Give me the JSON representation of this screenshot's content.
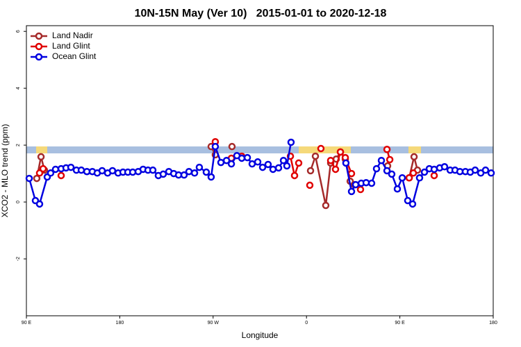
{
  "chart_data": {
    "type": "line",
    "title": "10N-15N May (Ver 10)   2015-01-01 to 2020-12-18",
    "x_label": "Longitude",
    "y_label": "XCO2 - MLO trend (ppm)",
    "xlim": [
      90,
      540
    ],
    "ylim": [
      -4,
      6.2
    ],
    "xticks": [
      {
        "value": 90,
        "label": "90 E"
      },
      180,
      {
        "value": 270,
        "label": "90 W"
      },
      {
        "value": 360,
        "label": "0"
      },
      {
        "value": 450,
        "label": "90 E"
      },
      {
        "value": 540,
        "label": "180"
      }
    ],
    "yticks": [
      -2,
      0,
      2,
      4,
      6
    ],
    "legend": "top-left",
    "series": [
      {
        "name": "Land Nadir",
        "color": "#a52a2a",
        "x": [
          100,
          104.1,
          107.4,
          null,
          268.1,
          272.1,
          null,
          288.2,
          null,
          363.9,
          368.6,
          378.6,
          383.3,
          388.7,
          392.7,
          397.4,
          402.1,
          406.1,
          null,
          438.2,
          null,
          459,
          463.7,
          467
        ],
        "values": [
          0.83,
          1.59,
          1.12,
          null,
          1.95,
          1.66,
          null,
          1.95,
          null,
          1.1,
          1.61,
          -0.12,
          1.37,
          1.51,
          1.76,
          1.51,
          0.73,
          0.61,
          null,
          1.27,
          null,
          0.85,
          1.59,
          1.12
        ]
      },
      {
        "name": "Land Glint",
        "color": "#e00000",
        "x": [
          102.7,
          106.1,
          null,
          123.5,
          null,
          272.1,
          null,
          287.6,
          null,
          297.6,
          null,
          344.5,
          348.5,
          352.5,
          null,
          363.2,
          null,
          373.9,
          null,
          383.3,
          388,
          392.7,
          397.4,
          403.4,
          null,
          412.1,
          null,
          437.6,
          440.3,
          null,
          459,
          463,
          null,
          483.1
        ],
        "values": [
          1.02,
          1.17,
          null,
          0.93,
          null,
          2.12,
          null,
          1.54,
          null,
          1.61,
          null,
          1.61,
          0.93,
          1.37,
          null,
          0.59,
          null,
          1.88,
          null,
          1.46,
          1.15,
          1.76,
          1.56,
          1.0,
          null,
          0.44,
          null,
          1.85,
          1.49,
          null,
          0.85,
          1.02,
          null,
          0.93
        ]
      },
      {
        "name": "Ocean Glint",
        "color": "#0000e0",
        "x": [
          92.7,
          98.7,
          102.7,
          110.1,
          113.4,
          118.1,
          123.5,
          128.2,
          132.9,
          138.2,
          142.9,
          148.3,
          153.6,
          158.3,
          163,
          168.3,
          173,
          178.4,
          183.1,
          187.8,
          192.5,
          197.8,
          202.5,
          207.2,
          211.9,
          217.2,
          221.9,
          227.3,
          232,
          236.7,
          242,
          246.7,
          252.1,
          256.7,
          263.4,
          268.1,
          272.1,
          277.5,
          282.9,
          287.6,
          292.9,
          297.6,
          303,
          307.6,
          313,
          317.7,
          323,
          327.7,
          333.1,
          337.8,
          341.1,
          345.1,
          null,
          398,
          403.4,
          407.4,
          412.8,
          417.5,
          422.8,
          427.5,
          432.2,
          437.6,
          442.2,
          447.6,
          452.3,
          457.6,
          462.3,
          469,
          473.7,
          478.4,
          483.1,
          488.4,
          493.1,
          498.5,
          503.2,
          507.9,
          513.2,
          517.9,
          522.6,
          528,
          532.6,
          538
        ],
        "values": [
          0.83,
          0.05,
          -0.07,
          0.88,
          1.02,
          1.15,
          1.17,
          1.2,
          1.22,
          1.12,
          1.12,
          1.07,
          1.07,
          1.02,
          1.1,
          1.02,
          1.1,
          1.02,
          1.05,
          1.05,
          1.05,
          1.07,
          1.15,
          1.12,
          1.12,
          0.93,
          0.98,
          1.07,
          1.0,
          0.95,
          0.95,
          1.07,
          1.02,
          1.22,
          1.05,
          0.88,
          1.95,
          1.39,
          1.46,
          1.34,
          1.63,
          1.54,
          1.56,
          1.34,
          1.41,
          1.22,
          1.32,
          1.15,
          1.2,
          1.46,
          1.27,
          2.1,
          null,
          1.37,
          0.37,
          0.61,
          0.66,
          0.68,
          0.66,
          1.17,
          1.46,
          1.1,
          0.98,
          0.46,
          0.85,
          0.05,
          -0.07,
          0.85,
          1.05,
          1.17,
          1.15,
          1.2,
          1.24,
          1.12,
          1.12,
          1.07,
          1.07,
          1.05,
          1.12,
          1.02,
          1.12,
          1.02
        ]
      }
    ]
  }
}
